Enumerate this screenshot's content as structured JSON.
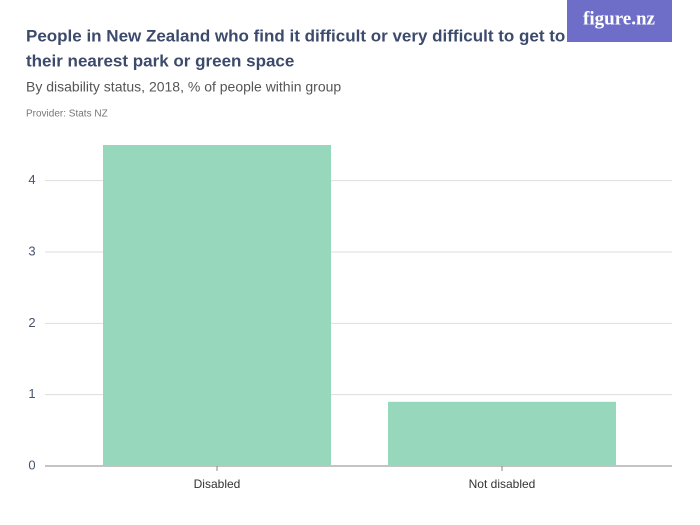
{
  "logo": "figure.nz",
  "chart_data": {
    "type": "bar",
    "title": [
      "People in New Zealand who find it difficult or very difficult to get to",
      "their nearest park or green space"
    ],
    "subtitle": "By disability status, 2018, % of people within group",
    "provider": "Provider: Stats NZ",
    "categories": [
      "Disabled",
      "Not disabled"
    ],
    "values": [
      4.5,
      0.9
    ],
    "color": "#97d7bb",
    "ylim": [
      0,
      4.5
    ],
    "yticks": [
      0,
      1,
      2,
      3,
      4
    ],
    "grid": true
  }
}
